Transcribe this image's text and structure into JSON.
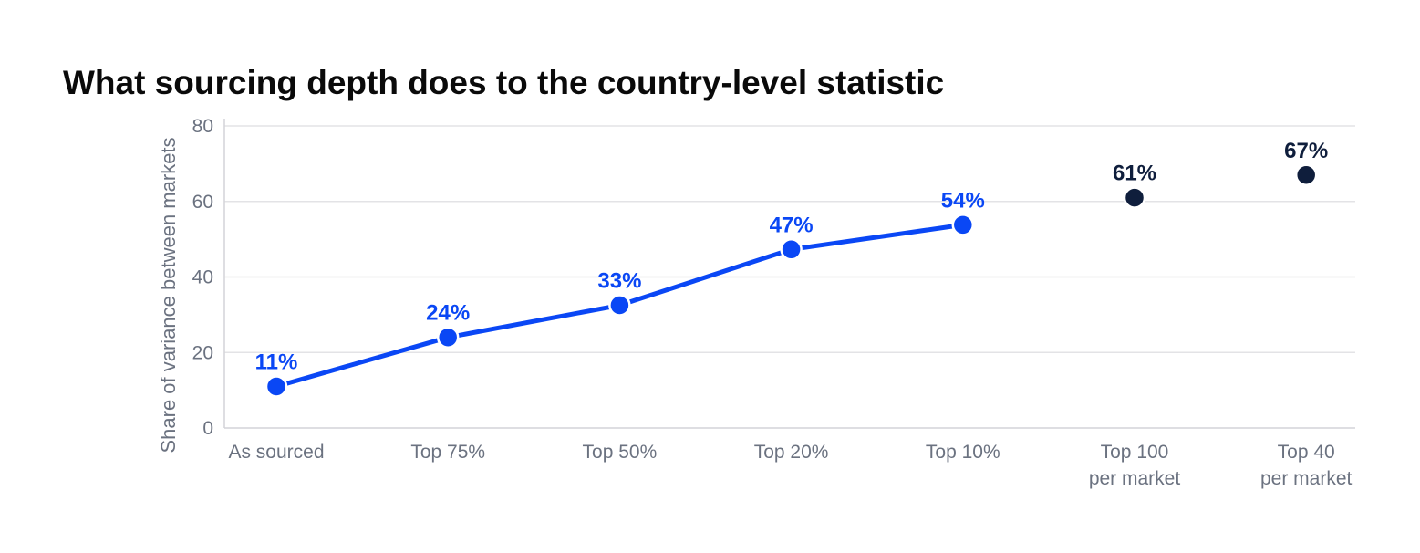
{
  "chart_data": {
    "type": "line",
    "title": "What sourcing depth does to the country-level statistic",
    "ylabel": "Share of variance between markets",
    "xlabel": "",
    "ylim": [
      0,
      80
    ],
    "yticks": [
      0,
      20,
      40,
      60,
      80
    ],
    "grid": true,
    "categories": [
      "As sourced",
      "Top 75%",
      "Top 50%",
      "Top 20%",
      "Top 10%",
      "Top 100\nper market",
      "Top 40\nper market"
    ],
    "points": [
      {
        "value": 11,
        "label": "11%",
        "group": "connected"
      },
      {
        "value": 24,
        "label": "24%",
        "group": "connected"
      },
      {
        "value": 32.5,
        "label": "33%",
        "group": "connected"
      },
      {
        "value": 47.3,
        "label": "47%",
        "group": "connected"
      },
      {
        "value": 53.8,
        "label": "54%",
        "group": "connected"
      },
      {
        "value": 61,
        "label": "61%",
        "group": "standalone"
      },
      {
        "value": 67,
        "label": "67%",
        "group": "standalone"
      }
    ],
    "colors": {
      "connected": "#0a47f5",
      "standalone": "#0f1e3c",
      "grid": "#e3e3e6",
      "axis": "#d4d4d8"
    }
  }
}
